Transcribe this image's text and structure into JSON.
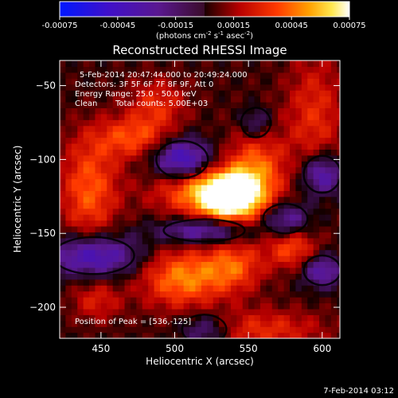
{
  "colorbar": {
    "ticks": [
      "-0.00075",
      "-0.00045",
      "-0.00015",
      "0.00015",
      "0.00045",
      "0.00075"
    ],
    "min": -0.00075,
    "max": 0.00075,
    "units_prefix": "(photons cm",
    "units_sup1": "-2",
    "units_mid": " s",
    "units_sup2": "-1",
    "units_mid2": " asec",
    "units_sup3": "-2",
    "units_suffix": ")"
  },
  "chart_data": {
    "type": "heatmap",
    "title": "Reconstructed RHESSI Image",
    "xlabel": "Heliocentric X (arcsec)",
    "ylabel": "Heliocentric Y (arcsec)",
    "xlim": [
      422,
      612
    ],
    "ylim": [
      -221,
      -33
    ],
    "xticks": [
      450,
      500,
      550,
      600
    ],
    "yticks": [
      -50,
      -100,
      -150,
      -200
    ],
    "colormap": "RHESSI red-yellow-white / blue-purple (negative)",
    "annotations": {
      "time_range": "5-Feb-2014 20:47:44.000 to 20:49:24.000",
      "detectors": "Detectors: 3F 5F 6F 7F 8F 9F, Att 0",
      "energy_range": "Energy Range: 25.0 - 50.0 keV",
      "method": "Clean",
      "total_counts": "Total counts: 5.00E+03",
      "peak": "Position of Peak = [536,-125]"
    },
    "peak_position": [
      536,
      -125
    ],
    "peak_value": 0.00075
  },
  "footer": {
    "date": "7-Feb-2014 03:12"
  }
}
